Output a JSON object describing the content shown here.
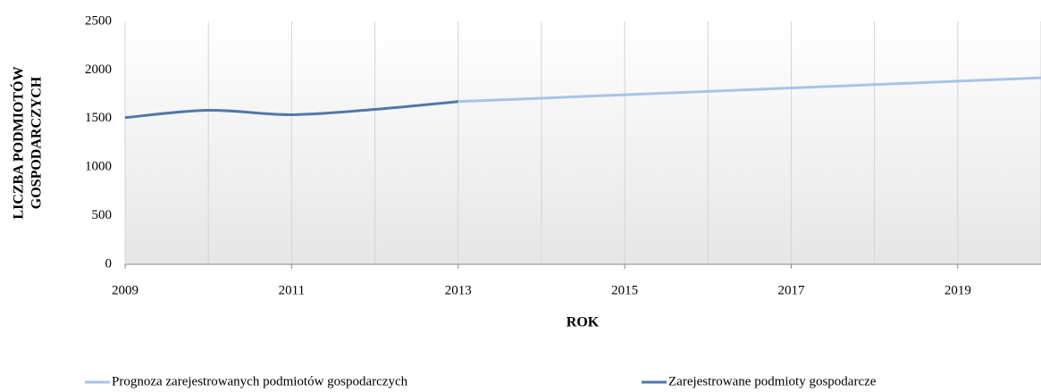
{
  "chart_data": {
    "type": "line",
    "ylabel": [
      "LICZBA PODMIOTÓW",
      "GOSPODARCZYCH"
    ],
    "xlabel": "ROK",
    "x": [
      2009,
      2010,
      2011,
      2012,
      2013,
      2014,
      2015,
      2016,
      2017,
      2018,
      2019,
      2020
    ],
    "series": [
      {
        "name": "Prognoza zarejestrowanych podmiotów gospodarczych",
        "color": "#a9c3e6",
        "values": [
          null,
          null,
          null,
          null,
          1675,
          1710,
          1745,
          1780,
          1815,
          1850,
          1885,
          1920
        ]
      },
      {
        "name": "Zarejestrowane podmioty gospodarcze",
        "color": "#4f78ab",
        "values": [
          1510,
          1585,
          1540,
          1595,
          1675,
          null,
          null,
          null,
          null,
          null,
          null,
          null
        ]
      }
    ],
    "xlim": [
      2009,
      2020
    ],
    "xticks": [
      2009,
      2011,
      2013,
      2015,
      2017,
      2019
    ],
    "ylim": [
      0,
      2500
    ],
    "yticks": [
      0,
      500,
      1000,
      1500,
      2000,
      2500
    ],
    "grid": true,
    "legend": "bottom"
  }
}
